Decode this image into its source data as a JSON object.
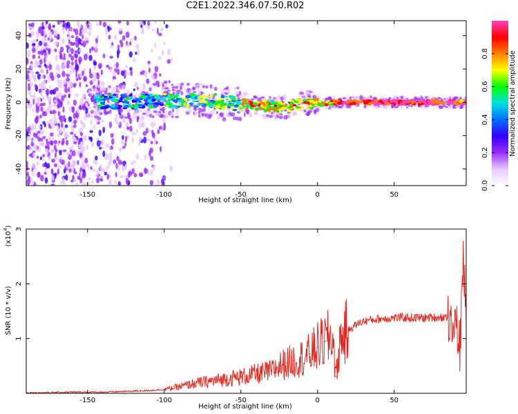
{
  "figure": {
    "title": "C2E1.2022.346.07.50.R02"
  },
  "chart_data": [
    {
      "type": "heatmap",
      "xlabel": "Height of straight line (km)",
      "ylabel": "Frequency (Hz)",
      "xlim": [
        -190,
        97
      ],
      "ylim": [
        -50,
        49
      ],
      "xticks": [
        -150,
        -100,
        -50,
        0,
        50
      ],
      "yticks": [
        -40,
        -20,
        0,
        20,
        40
      ],
      "colorbar": {
        "label": "Normalized spectral amplitude",
        "range": [
          0,
          1
        ],
        "ticks": [
          "0.0",
          "0.2",
          "0.4",
          "0.6",
          "0.8"
        ],
        "colormap": [
          "#ffffff",
          "#e6c8ff",
          "#9b2cff",
          "#3200ff",
          "#0070ff",
          "#00e0e0",
          "#00ff00",
          "#ffff00",
          "#ff8000",
          "#ff0000",
          "#ff40c0"
        ]
      },
      "ridge": {
        "description_points": [
          {
            "x": -145,
            "y": 0
          },
          {
            "x": -100,
            "y": 1
          },
          {
            "x": -75,
            "y": 1
          },
          {
            "x": -50,
            "y": -1
          },
          {
            "x": -25,
            "y": -3
          },
          {
            "x": -10,
            "y": -1
          },
          {
            "x": 0,
            "y": 0
          },
          {
            "x": 5,
            "y": -1
          },
          {
            "x": 10,
            "y": 0
          },
          {
            "x": 95,
            "y": 0
          }
        ]
      }
    },
    {
      "type": "line",
      "xlabel": "Height of straight line (km)",
      "ylabel": "SNR (10 * v/v)",
      "yscale_label": "(x10",
      "yscale_exp": "4",
      "xlim": [
        -190,
        97
      ],
      "ylim": [
        0,
        3
      ],
      "xticks": [
        -150,
        -100,
        -50,
        0,
        50
      ],
      "yticks": [
        1,
        2,
        3
      ],
      "line_color": "#e8261e",
      "series": [
        {
          "x": [
            -190,
            -180,
            -160,
            -140,
            -130,
            -120,
            -110,
            -100,
            -90,
            -80,
            -70,
            -60,
            -50,
            -40,
            -30,
            -25,
            -20,
            -15,
            -10,
            -5,
            0,
            5,
            10,
            12,
            15,
            20,
            25,
            30,
            40,
            50,
            60,
            70,
            80,
            85,
            90,
            93,
            95,
            97
          ],
          "values": [
            0.01,
            0.01,
            0.02,
            0.02,
            0.03,
            0.04,
            0.05,
            0.07,
            0.12,
            0.18,
            0.22,
            0.26,
            0.3,
            0.35,
            0.4,
            0.5,
            0.55,
            0.6,
            0.65,
            0.72,
            0.85,
            0.95,
            1.05,
            0.3,
            1.0,
            1.15,
            1.25,
            1.32,
            1.36,
            1.38,
            1.38,
            1.38,
            1.39,
            1.4,
            1.35,
            0.8,
            2.5,
            1.4
          ]
        }
      ]
    }
  ]
}
